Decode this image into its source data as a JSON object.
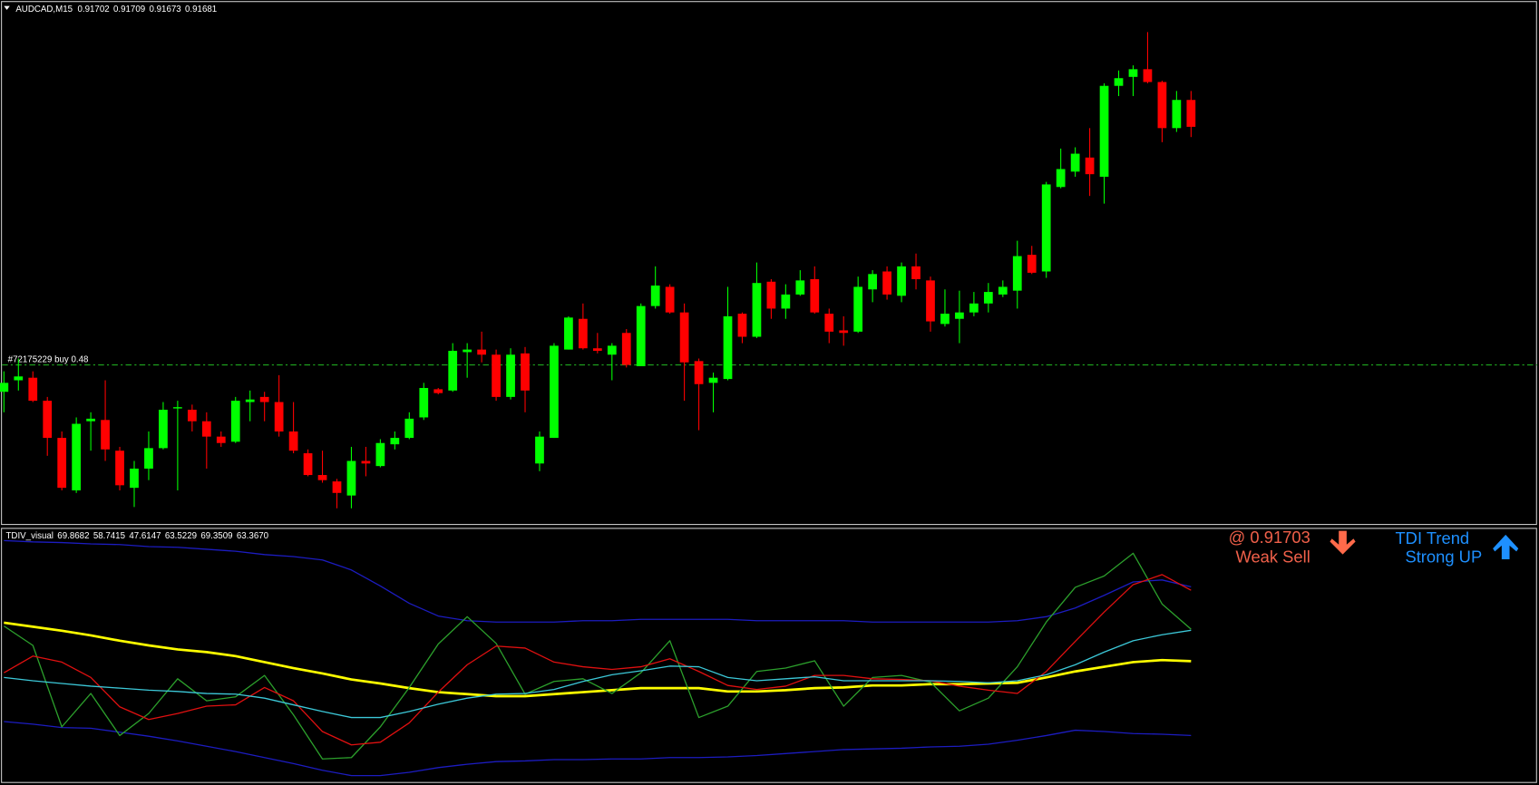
{
  "chart_data": [
    {
      "type": "candlestick",
      "title": "AUDCAD,M15",
      "ylim": [
        0.9137,
        0.9178
      ],
      "up_color": "#00ff00",
      "down_color": "#ff0000",
      "order_line": {
        "label": "#72175229 buy 0.48",
        "value": 0.91495,
        "color": "#1fa81f"
      },
      "open": [
        0.91474,
        0.91483,
        0.91485,
        0.91467,
        0.91438,
        0.91397,
        0.91451,
        0.91452,
        0.91428,
        0.91399,
        0.91414,
        0.9143,
        0.91461,
        0.9146,
        0.91451,
        0.91439,
        0.91435,
        0.91466,
        0.9147,
        0.91466,
        0.91443,
        0.91426,
        0.91409,
        0.91404,
        0.91393,
        0.9142,
        0.91416,
        0.91433,
        0.91438,
        0.91454,
        0.91476,
        0.91475,
        0.91505,
        0.91507,
        0.91503,
        0.9147,
        0.91504,
        0.91418,
        0.91438,
        0.91507,
        0.91531,
        0.91508,
        0.91503,
        0.9152,
        0.91494,
        0.91541,
        0.91556,
        0.91536,
        0.91498,
        0.91481,
        0.91484,
        0.91535,
        0.91517,
        0.9156,
        0.91539,
        0.9155,
        0.91562,
        0.91535,
        0.91522,
        0.91521,
        0.91554,
        0.91568,
        0.91549,
        0.91572,
        0.91561,
        0.91527,
        0.91531,
        0.91536,
        0.91543,
        0.9155,
        0.91553,
        0.91581,
        0.91568,
        0.91634,
        0.91646,
        0.91657,
        0.91642,
        0.91713,
        0.9172,
        0.91726,
        0.91716,
        0.9168,
        0.91702
      ],
      "high": [
        0.9149,
        0.915,
        0.9149,
        0.9147,
        0.91443,
        0.91454,
        0.91458,
        0.91483,
        0.91431,
        0.9142,
        0.91443,
        0.91466,
        0.91467,
        0.91464,
        0.91458,
        0.91443,
        0.9147,
        0.91475,
        0.91474,
        0.91487,
        0.91466,
        0.91429,
        0.91428,
        0.91406,
        0.91431,
        0.91431,
        0.91437,
        0.91443,
        0.91458,
        0.91481,
        0.91477,
        0.91512,
        0.91512,
        0.91521,
        0.91507,
        0.91508,
        0.91509,
        0.91443,
        0.91512,
        0.91533,
        0.91543,
        0.9152,
        0.91512,
        0.91523,
        0.91543,
        0.91572,
        0.91558,
        0.91543,
        0.915,
        0.91489,
        0.91556,
        0.91536,
        0.91575,
        0.91562,
        0.91558,
        0.91569,
        0.91572,
        0.91539,
        0.91533,
        0.91564,
        0.91569,
        0.91572,
        0.91575,
        0.91582,
        0.91564,
        0.91554,
        0.91553,
        0.91552,
        0.91559,
        0.91561,
        0.91592,
        0.91588,
        0.91638,
        0.91664,
        0.91665,
        0.9168,
        0.91715,
        0.91725,
        0.91729,
        0.91755,
        0.91717,
        0.91709,
        0.91709
      ],
      "low": [
        0.91458,
        0.91475,
        0.91466,
        0.91424,
        0.91397,
        0.91395,
        0.91428,
        0.9142,
        0.91397,
        0.91384,
        0.91405,
        0.91429,
        0.91397,
        0.91443,
        0.91414,
        0.91431,
        0.91434,
        0.91451,
        0.91451,
        0.91439,
        0.91426,
        0.91408,
        0.91403,
        0.91383,
        0.91383,
        0.91408,
        0.91415,
        0.91429,
        0.91437,
        0.91452,
        0.91472,
        0.91474,
        0.91485,
        0.91497,
        0.91467,
        0.91468,
        0.91458,
        0.91412,
        0.91438,
        0.91507,
        0.91507,
        0.91504,
        0.91483,
        0.91493,
        0.91494,
        0.91539,
        0.91535,
        0.91467,
        0.91444,
        0.91458,
        0.91483,
        0.91512,
        0.91516,
        0.91531,
        0.91531,
        0.91549,
        0.91535,
        0.91512,
        0.9151,
        0.9152,
        0.91544,
        0.91546,
        0.91544,
        0.91554,
        0.91521,
        0.91525,
        0.91512,
        0.91533,
        0.91536,
        0.91548,
        0.91539,
        0.91566,
        0.91563,
        0.91633,
        0.91642,
        0.91627,
        0.91621,
        0.91705,
        0.91705,
        0.91715,
        0.91669,
        0.91677,
        0.91673
      ],
      "close": [
        0.91481,
        0.91486,
        0.91467,
        0.91438,
        0.91399,
        0.91449,
        0.91453,
        0.91429,
        0.91401,
        0.91414,
        0.9143,
        0.9146,
        0.91462,
        0.91451,
        0.91439,
        0.91434,
        0.91467,
        0.91468,
        0.91466,
        0.91443,
        0.91428,
        0.91409,
        0.91405,
        0.91395,
        0.9142,
        0.91418,
        0.91434,
        0.91438,
        0.91453,
        0.91477,
        0.91473,
        0.91506,
        0.91507,
        0.91503,
        0.9147,
        0.91503,
        0.91475,
        0.91439,
        0.9151,
        0.91532,
        0.91508,
        0.91506,
        0.9151,
        0.91495,
        0.91541,
        0.91557,
        0.91536,
        0.91497,
        0.9148,
        0.91485,
        0.91533,
        0.91517,
        0.91559,
        0.91539,
        0.9155,
        0.91561,
        0.91536,
        0.91521,
        0.9152,
        0.91556,
        0.91566,
        0.9155,
        0.91572,
        0.91562,
        0.91529,
        0.91535,
        0.91536,
        0.91543,
        0.91552,
        0.91556,
        0.9158,
        0.91567,
        0.91636,
        0.91648,
        0.9166,
        0.91644,
        0.91713,
        0.91719,
        0.91726,
        0.91716,
        0.9168,
        0.91702,
        0.91681
      ]
    },
    {
      "type": "line",
      "title": "TDIV_visual",
      "readout": [
        "69.8682",
        "58.7415",
        "47.6147",
        "63.5229",
        "69.3509",
        "63.3670"
      ],
      "ylim": [
        40.5,
        78.7
      ],
      "x": [
        0,
        2,
        4,
        6,
        8,
        10,
        12,
        14,
        16,
        18,
        20,
        22,
        24,
        26,
        28,
        30,
        32,
        34,
        36,
        38,
        40,
        42,
        44,
        46,
        48,
        50,
        52,
        54,
        56,
        58,
        60,
        62,
        64,
        66,
        68,
        70,
        72,
        74,
        76,
        78,
        80,
        82
      ],
      "series": [
        {
          "color": "#1c1cc0",
          "values": [
            76.8,
            76.6,
            76.5,
            76.3,
            76.2,
            75.9,
            75.8,
            75.5,
            75.2,
            74.7,
            74.4,
            73.9,
            72.4,
            70.0,
            67.4,
            65.5,
            64.8,
            64.6,
            64.6,
            64.6,
            64.8,
            64.8,
            65.0,
            65.0,
            65.0,
            65.0,
            64.8,
            64.8,
            64.8,
            64.8,
            64.6,
            64.6,
            64.6,
            64.6,
            64.6,
            64.8,
            65.4,
            66.7,
            68.6,
            70.6,
            70.9,
            69.8682
          ]
        },
        {
          "color": "#ffff00",
          "values": [
            64.5,
            63.9,
            63.3,
            62.6,
            61.8,
            61.1,
            60.5,
            60.1,
            59.5,
            58.6,
            57.7,
            56.9,
            56.0,
            55.4,
            54.7,
            54.1,
            53.8,
            53.5,
            53.5,
            53.8,
            54.1,
            54.4,
            54.7,
            54.7,
            54.7,
            54.2,
            54.2,
            54.4,
            54.7,
            54.8,
            55.1,
            55.1,
            55.3,
            55.3,
            55.4,
            55.5,
            56.3,
            57.2,
            57.9,
            58.6,
            58.9,
            58.7415
          ]
        },
        {
          "color": "#1c1cc0",
          "values": [
            49.7,
            49.3,
            48.8,
            48.7,
            48.1,
            47.5,
            46.8,
            46.0,
            45.2,
            44.3,
            43.4,
            42.4,
            41.6,
            41.6,
            42.1,
            42.8,
            43.3,
            43.7,
            43.8,
            44.0,
            44.0,
            44.1,
            44.1,
            44.3,
            44.3,
            44.4,
            44.6,
            44.9,
            45.2,
            45.5,
            45.6,
            45.7,
            45.9,
            46.0,
            46.3,
            46.9,
            47.6,
            48.4,
            48.2,
            47.9,
            47.8,
            47.6147
          ]
        },
        {
          "color": "#2ca02c",
          "values": [
            64.0,
            61.1,
            48.9,
            53.9,
            47.6,
            50.9,
            56.1,
            52.8,
            53.4,
            56.6,
            50.7,
            44.1,
            44.3,
            48.9,
            54.8,
            61.3,
            65.4,
            61.4,
            53.8,
            55.7,
            56.1,
            53.9,
            57.0,
            61.8,
            50.3,
            52.0,
            57.2,
            57.7,
            58.8,
            52.0,
            56.3,
            56.6,
            55.6,
            51.3,
            53.2,
            57.9,
            64.6,
            69.8,
            71.5,
            74.9,
            67.3,
            63.5229
          ]
        },
        {
          "color": "#e01010",
          "values": [
            57.0,
            59.5,
            58.6,
            56.3,
            51.9,
            50.0,
            50.9,
            52.0,
            52.2,
            54.8,
            52.8,
            48.2,
            46.2,
            46.6,
            49.5,
            54.1,
            58.2,
            61.0,
            60.7,
            58.6,
            57.9,
            57.5,
            57.9,
            59.1,
            57.2,
            55.1,
            54.5,
            55.0,
            56.6,
            56.6,
            56.1,
            56.0,
            55.8,
            55.0,
            54.4,
            53.9,
            57.2,
            61.7,
            66.1,
            70.2,
            71.7,
            69.3509
          ]
        },
        {
          "color": "#3cc8d8",
          "values": [
            56.3,
            55.8,
            55.4,
            55.0,
            54.7,
            54.4,
            54.2,
            53.9,
            53.8,
            53.2,
            52.2,
            51.2,
            50.3,
            50.3,
            51.2,
            52.3,
            53.2,
            53.8,
            53.9,
            54.5,
            55.7,
            56.7,
            57.3,
            58.0,
            57.9,
            56.3,
            55.8,
            56.1,
            56.4,
            55.8,
            55.8,
            55.8,
            55.8,
            55.7,
            55.5,
            55.8,
            56.7,
            58.2,
            60.1,
            61.8,
            62.7,
            63.367
          ]
        }
      ]
    }
  ],
  "signals": {
    "price": "@ 0.91703",
    "action": "Weak Sell",
    "trend_label": "TDI Trend",
    "trend": "Strong UP"
  }
}
